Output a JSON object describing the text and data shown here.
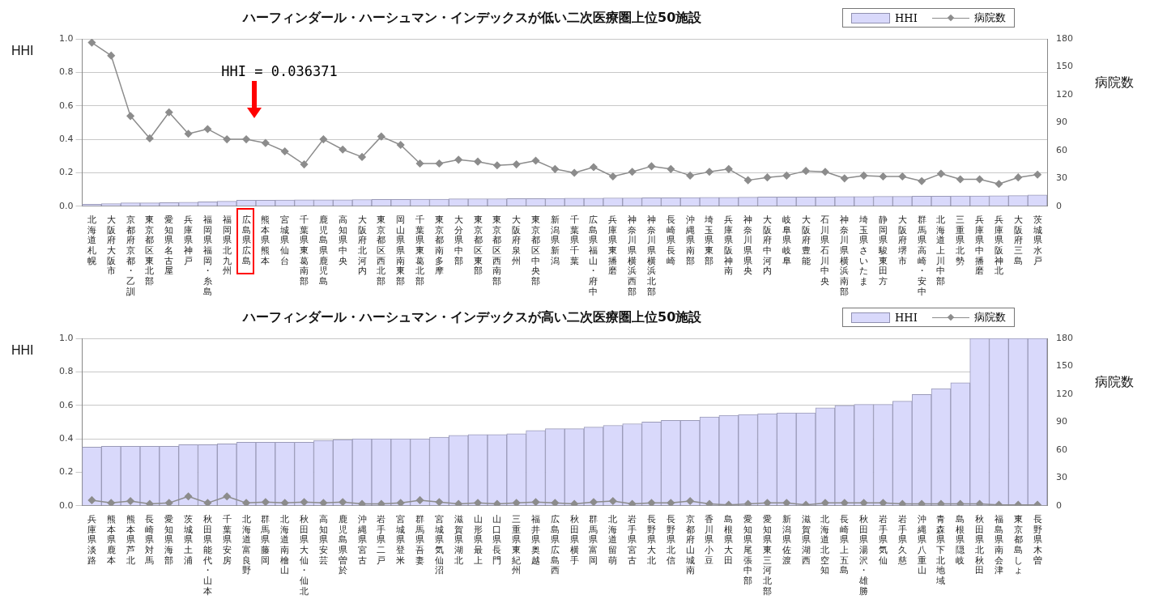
{
  "chart_data": [
    {
      "type": "bar",
      "title": "ハーフィンダール・ハーシュマン・インデックスが低い二次医療圏上位50施設",
      "ylabel": "HHI",
      "y2label": "病院数",
      "categories": [
        "北海道札幌",
        "大阪府大阪市",
        "京都府京都・乙訓",
        "東京都区東北部",
        "愛知県名古屋",
        "兵庫県神戸",
        "福岡県福岡・糸島",
        "福岡県北九州",
        "広島県広島",
        "熊本県熊本",
        "宮城県仙台",
        "千葉県東葛南部",
        "鹿児島県鹿児島",
        "高知県中央",
        "大阪府北河内",
        "東京都区西北部",
        "岡山県県南東部",
        "千葉県東葛北部",
        "東京都南多摩",
        "大分県中部",
        "東京都区東部",
        "東京都区西南部",
        "大阪府泉州",
        "東京都区中央部",
        "新潟県新潟",
        "千葉県千葉",
        "広島県福山・府中",
        "兵庫県東播磨",
        "神奈川県横浜西部",
        "神奈川県横浜北部",
        "長崎県長崎",
        "沖縄県南部",
        "埼玉県東部",
        "兵庫県阪神南",
        "神奈川県県央",
        "大阪府中河内",
        "岐阜県岐阜",
        "大阪府豊能",
        "石川県石川中央",
        "神奈川県横浜南部",
        "埼玉県さいたま",
        "静岡県駿東田方",
        "大阪府堺市",
        "群馬県高崎・安中",
        "北海道上川中部",
        "三重県北勢",
        "兵庫県中播磨",
        "兵庫県阪神北",
        "大阪府三島",
        "茨城県水戸"
      ],
      "series": [
        {
          "name": "HHI",
          "color": "#d9d9fb",
          "values": [
            0.012,
            0.015,
            0.02,
            0.02,
            0.022,
            0.024,
            0.027,
            0.03,
            0.036,
            0.036,
            0.037,
            0.038,
            0.039,
            0.039,
            0.04,
            0.041,
            0.041,
            0.042,
            0.042,
            0.044,
            0.045,
            0.045,
            0.046,
            0.046,
            0.047,
            0.048,
            0.048,
            0.05,
            0.05,
            0.051,
            0.051,
            0.052,
            0.053,
            0.053,
            0.054,
            0.055,
            0.055,
            0.056,
            0.056,
            0.058,
            0.058,
            0.059,
            0.059,
            0.06,
            0.06,
            0.061,
            0.062,
            0.063,
            0.064,
            0.068
          ]
        },
        {
          "name": "病院数",
          "type": "line",
          "axis": "y2",
          "color": "#8c8c8c",
          "values": [
            176,
            162,
            97,
            73,
            101,
            78,
            83,
            72,
            72,
            68,
            59,
            45,
            72,
            61,
            53,
            75,
            66,
            46,
            46,
            50,
            48,
            44,
            45,
            49,
            40,
            36,
            42,
            32,
            37,
            43,
            40,
            33,
            37,
            40,
            28,
            31,
            33,
            38,
            37,
            30,
            33,
            32,
            32,
            27,
            35,
            29,
            29,
            24,
            31,
            34
          ]
        }
      ],
      "ylim": [
        0,
        1
      ],
      "yticks": [
        {
          "value": 0,
          "label": "0.0"
        },
        {
          "value": 0.2,
          "label": "0.2"
        },
        {
          "value": 0.4,
          "label": "0.4"
        },
        {
          "value": 0.6,
          "label": "0.6"
        },
        {
          "value": 0.8,
          "label": "0.8"
        },
        {
          "value": 1,
          "label": "1.0"
        }
      ],
      "y2lim": [
        0,
        180
      ],
      "y2ticks": [
        0,
        30,
        60,
        90,
        120,
        150,
        180
      ],
      "grid": "y",
      "legend": "top right",
      "marker": "diamond",
      "annotations": [
        "HHI = 0.036371"
      ]
    },
    {
      "type": "bar",
      "title": "ハーフィンダール・ハーシュマン・インデックスが高い二次医療圏上位50施設",
      "ylabel": "HHI",
      "y2label": "病院数",
      "categories": [
        "兵庫県淡路",
        "熊本県鹿本",
        "熊本県芦北",
        "長崎県対馬",
        "愛知県海部",
        "茨城県土浦",
        "秋田県能代・山本",
        "千葉県安房",
        "北海道富良野",
        "群馬県藤岡",
        "北海道南檜山",
        "秋田県大仙・仙北",
        "高知県安芸",
        "鹿児島県曽於",
        "沖縄県宮古",
        "岩手県二戸",
        "宮城県登米",
        "群馬県吾妻",
        "宮城県気仙沼",
        "滋賀県湖北",
        "山形県最上",
        "山口県長門",
        "三重県東紀州",
        "福井県奥越",
        "広島県広島西",
        "秋田県横手",
        "群馬県富岡",
        "北海道留萌",
        "岩手県宮古",
        "長野県大北",
        "長野県北信",
        "京都府山城南",
        "香川県小豆",
        "島根県大田",
        "愛知県尾張中部",
        "愛知県東三河北部",
        "新潟県佐渡",
        "滋賀県湖西",
        "北海道北空知",
        "長崎県上五島",
        "秋田県湯沢・雄勝",
        "岩手県気仙",
        "岩手県久慈",
        "沖縄県八重山",
        "青森県下北地域",
        "島根県隠岐",
        "秋田県北秋田",
        "福島県南会津",
        "東京都島しょ",
        "長野県木曽"
      ],
      "series": [
        {
          "name": "HHI",
          "color": "#d9d9fb",
          "values": [
            0.35,
            0.355,
            0.355,
            0.355,
            0.355,
            0.365,
            0.365,
            0.37,
            0.38,
            0.38,
            0.38,
            0.38,
            0.39,
            0.395,
            0.4,
            0.4,
            0.4,
            0.4,
            0.41,
            0.42,
            0.425,
            0.425,
            0.43,
            0.45,
            0.46,
            0.46,
            0.47,
            0.48,
            0.49,
            0.5,
            0.51,
            0.51,
            0.53,
            0.54,
            0.545,
            0.55,
            0.555,
            0.555,
            0.585,
            0.6,
            0.605,
            0.605,
            0.625,
            0.665,
            0.7,
            0.735,
            1,
            1,
            1,
            1
          ]
        },
        {
          "name": "病院数",
          "type": "line",
          "axis": "y2",
          "color": "#8c8c8c",
          "values": [
            6,
            3,
            5,
            2,
            3,
            10,
            3,
            10,
            3,
            4,
            3,
            4,
            3,
            4,
            2,
            2,
            3,
            6,
            4,
            2,
            3,
            2,
            3,
            4,
            3,
            2,
            4,
            5,
            2,
            3,
            3,
            5,
            2,
            1,
            2,
            3,
            3,
            1,
            3,
            3,
            3,
            3,
            2,
            2,
            2,
            2,
            2,
            1,
            1,
            1
          ]
        }
      ],
      "ylim": [
        0,
        1
      ],
      "yticks": [
        {
          "value": 0,
          "label": "0.0"
        },
        {
          "value": 0.2,
          "label": "0.2"
        },
        {
          "value": 0.4,
          "label": "0.4"
        },
        {
          "value": 0.6,
          "label": "0.6"
        },
        {
          "value": 0.8,
          "label": "0.8"
        },
        {
          "value": 1,
          "label": "1.0"
        }
      ],
      "y2lim": [
        0,
        180
      ],
      "y2ticks": [
        0,
        30,
        60,
        90,
        120,
        150,
        180
      ],
      "grid": "y",
      "legend": "top right",
      "marker": "diamond"
    }
  ]
}
